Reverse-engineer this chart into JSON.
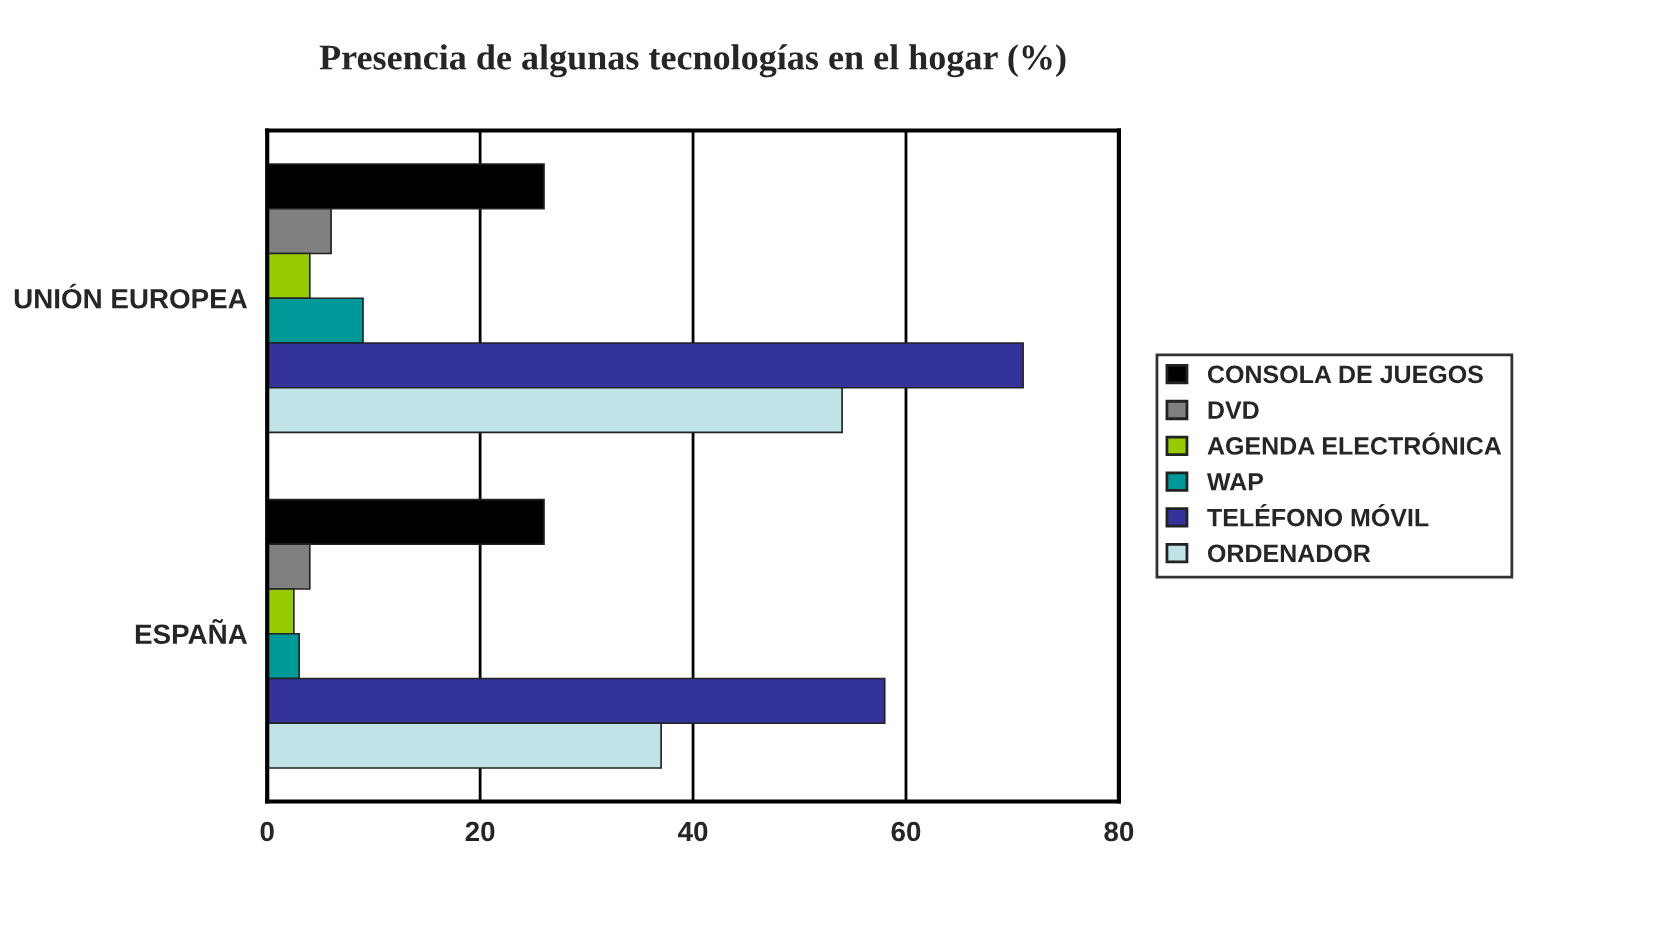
{
  "chart_data": {
    "type": "bar",
    "orientation": "horizontal",
    "title": "Presencia de algunas tecnologías en el hogar (%)",
    "categories": [
      "UNIÓN EUROPEA",
      "ESPAÑA"
    ],
    "series": [
      {
        "name": "CONSOLA DE JUEGOS",
        "color": "#000000",
        "values": [
          26,
          26
        ]
      },
      {
        "name": "DVD",
        "color": "#808080",
        "values": [
          6,
          4
        ]
      },
      {
        "name": "AGENDA ELECTRÓNICA",
        "color": "#99cc00",
        "values": [
          4,
          2.5
        ]
      },
      {
        "name": "WAP",
        "color": "#009999",
        "values": [
          9,
          3
        ]
      },
      {
        "name": "TELÉFONO MÓVIL",
        "color": "#333399",
        "values": [
          71,
          58
        ]
      },
      {
        "name": "ORDENADOR",
        "color": "#bfe3e6",
        "values": [
          54,
          37
        ]
      }
    ],
    "xlim": [
      0,
      80
    ],
    "xticks": [
      0,
      20,
      40,
      60,
      80
    ],
    "grid": "x",
    "legend": "right"
  }
}
